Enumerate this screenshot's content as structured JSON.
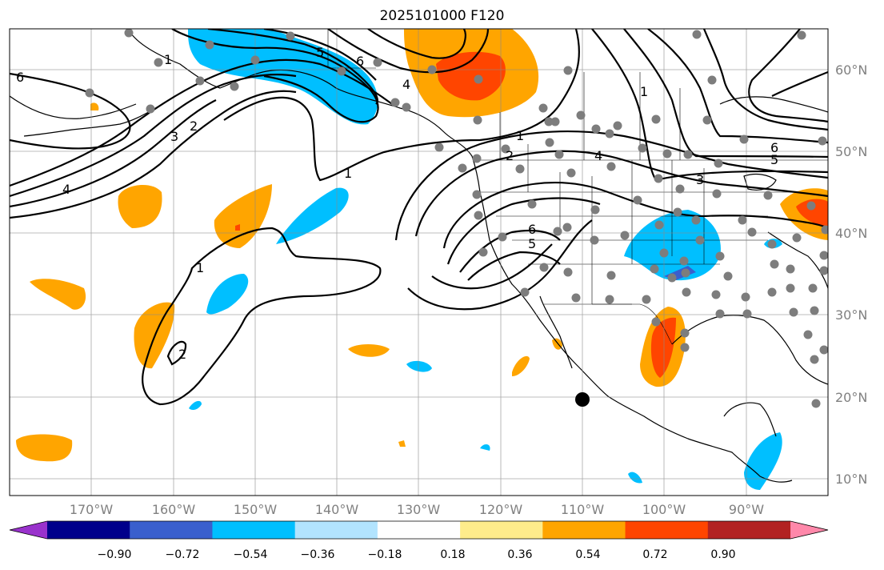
{
  "title": "2025101000 F120",
  "map": {
    "lon_range": [
      -180,
      -80
    ],
    "lat_range": [
      8,
      65
    ],
    "lat_ticks": [
      {
        "lat": 60,
        "label": "60°N"
      },
      {
        "lat": 50,
        "label": "50°N"
      },
      {
        "lat": 40,
        "label": "40°N"
      },
      {
        "lat": 30,
        "label": "30°N"
      },
      {
        "lat": 20,
        "label": "20°N"
      },
      {
        "lat": 10,
        "label": "10°N"
      }
    ],
    "lon_ticks": [
      {
        "lon": -170,
        "label": "170°W"
      },
      {
        "lon": -160,
        "label": "160°W"
      },
      {
        "lon": -150,
        "label": "150°W"
      },
      {
        "lon": -140,
        "label": "140°W"
      },
      {
        "lon": -130,
        "label": "130°W"
      },
      {
        "lon": -120,
        "label": "120°W"
      },
      {
        "lon": -110,
        "label": "110°W"
      },
      {
        "lon": -100,
        "label": "100°W"
      },
      {
        "lon": -90,
        "label": "90°W"
      }
    ],
    "marker_label": "storm-center-marker",
    "contour_labels": [
      "6",
      "5",
      "6",
      "4",
      "1",
      "3",
      "2",
      "4",
      "1",
      "1",
      "2",
      "1",
      "4",
      "3",
      "5",
      "6",
      "5",
      "6",
      "2",
      "1"
    ]
  },
  "colorbar": {
    "colors": [
      "#9932cc",
      "#00008b",
      "#3a5fcd",
      "#00bfff",
      "#b2e4ff",
      "#ffffff",
      "#ffec8b",
      "#ffa500",
      "#ff4500",
      "#b22222",
      "#ff88aa"
    ],
    "tick_labels": [
      "−0.90",
      "−0.72",
      "−0.54",
      "−0.36",
      "−0.18",
      "0.18",
      "0.36",
      "0.54",
      "0.72",
      "0.90"
    ]
  }
}
